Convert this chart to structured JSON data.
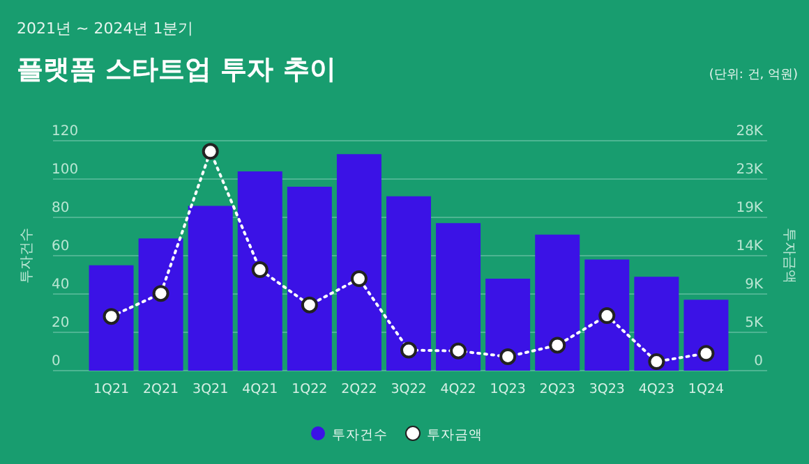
{
  "chart_data": {
    "type": "bar",
    "subtitle": "2021년 ~ 2024년 1분기",
    "title": "플랫폼 스타트업 투자 추이",
    "annotations": [
      "(단위: 건, 억원)"
    ],
    "ylabel": "투자건수",
    "y2label": "투자금액",
    "categories": [
      "1Q21",
      "2Q21",
      "3Q21",
      "4Q21",
      "1Q22",
      "2Q22",
      "3Q22",
      "4Q22",
      "1Q23",
      "2Q23",
      "3Q23",
      "4Q23",
      "1Q24"
    ],
    "series": [
      {
        "name": "투자건수",
        "color": "#3b12e6",
        "values": [
          55,
          69,
          86,
          104,
          96,
          113,
          91,
          77,
          48,
          71,
          58,
          49,
          37
        ]
      },
      {
        "name": "투자금액",
        "type": "line",
        "axis": "y2",
        "color": "#ffffff",
        "line_style": "dotted",
        "marker": "circle",
        "values": [
          6600,
          9400,
          26700,
          12300,
          8000,
          11200,
          2500,
          2400,
          1700,
          3100,
          6700,
          1100,
          2100
        ]
      }
    ],
    "ylim": [
      0,
      120
    ],
    "yticks": [
      0,
      20,
      40,
      60,
      80,
      100,
      120
    ],
    "y2lim": [
      0,
      28000
    ],
    "y2ticks": [
      0,
      {
        "value": 4667,
        "label": "5K"
      },
      {
        "value": 9333,
        "label": "9K"
      },
      {
        "value": 14000,
        "label": "14K"
      },
      {
        "value": 18667,
        "label": "19K"
      },
      {
        "value": 23333,
        "label": "23K"
      },
      {
        "value": 28000,
        "label": "28K"
      }
    ],
    "grid": "y",
    "legend": "bottom"
  }
}
